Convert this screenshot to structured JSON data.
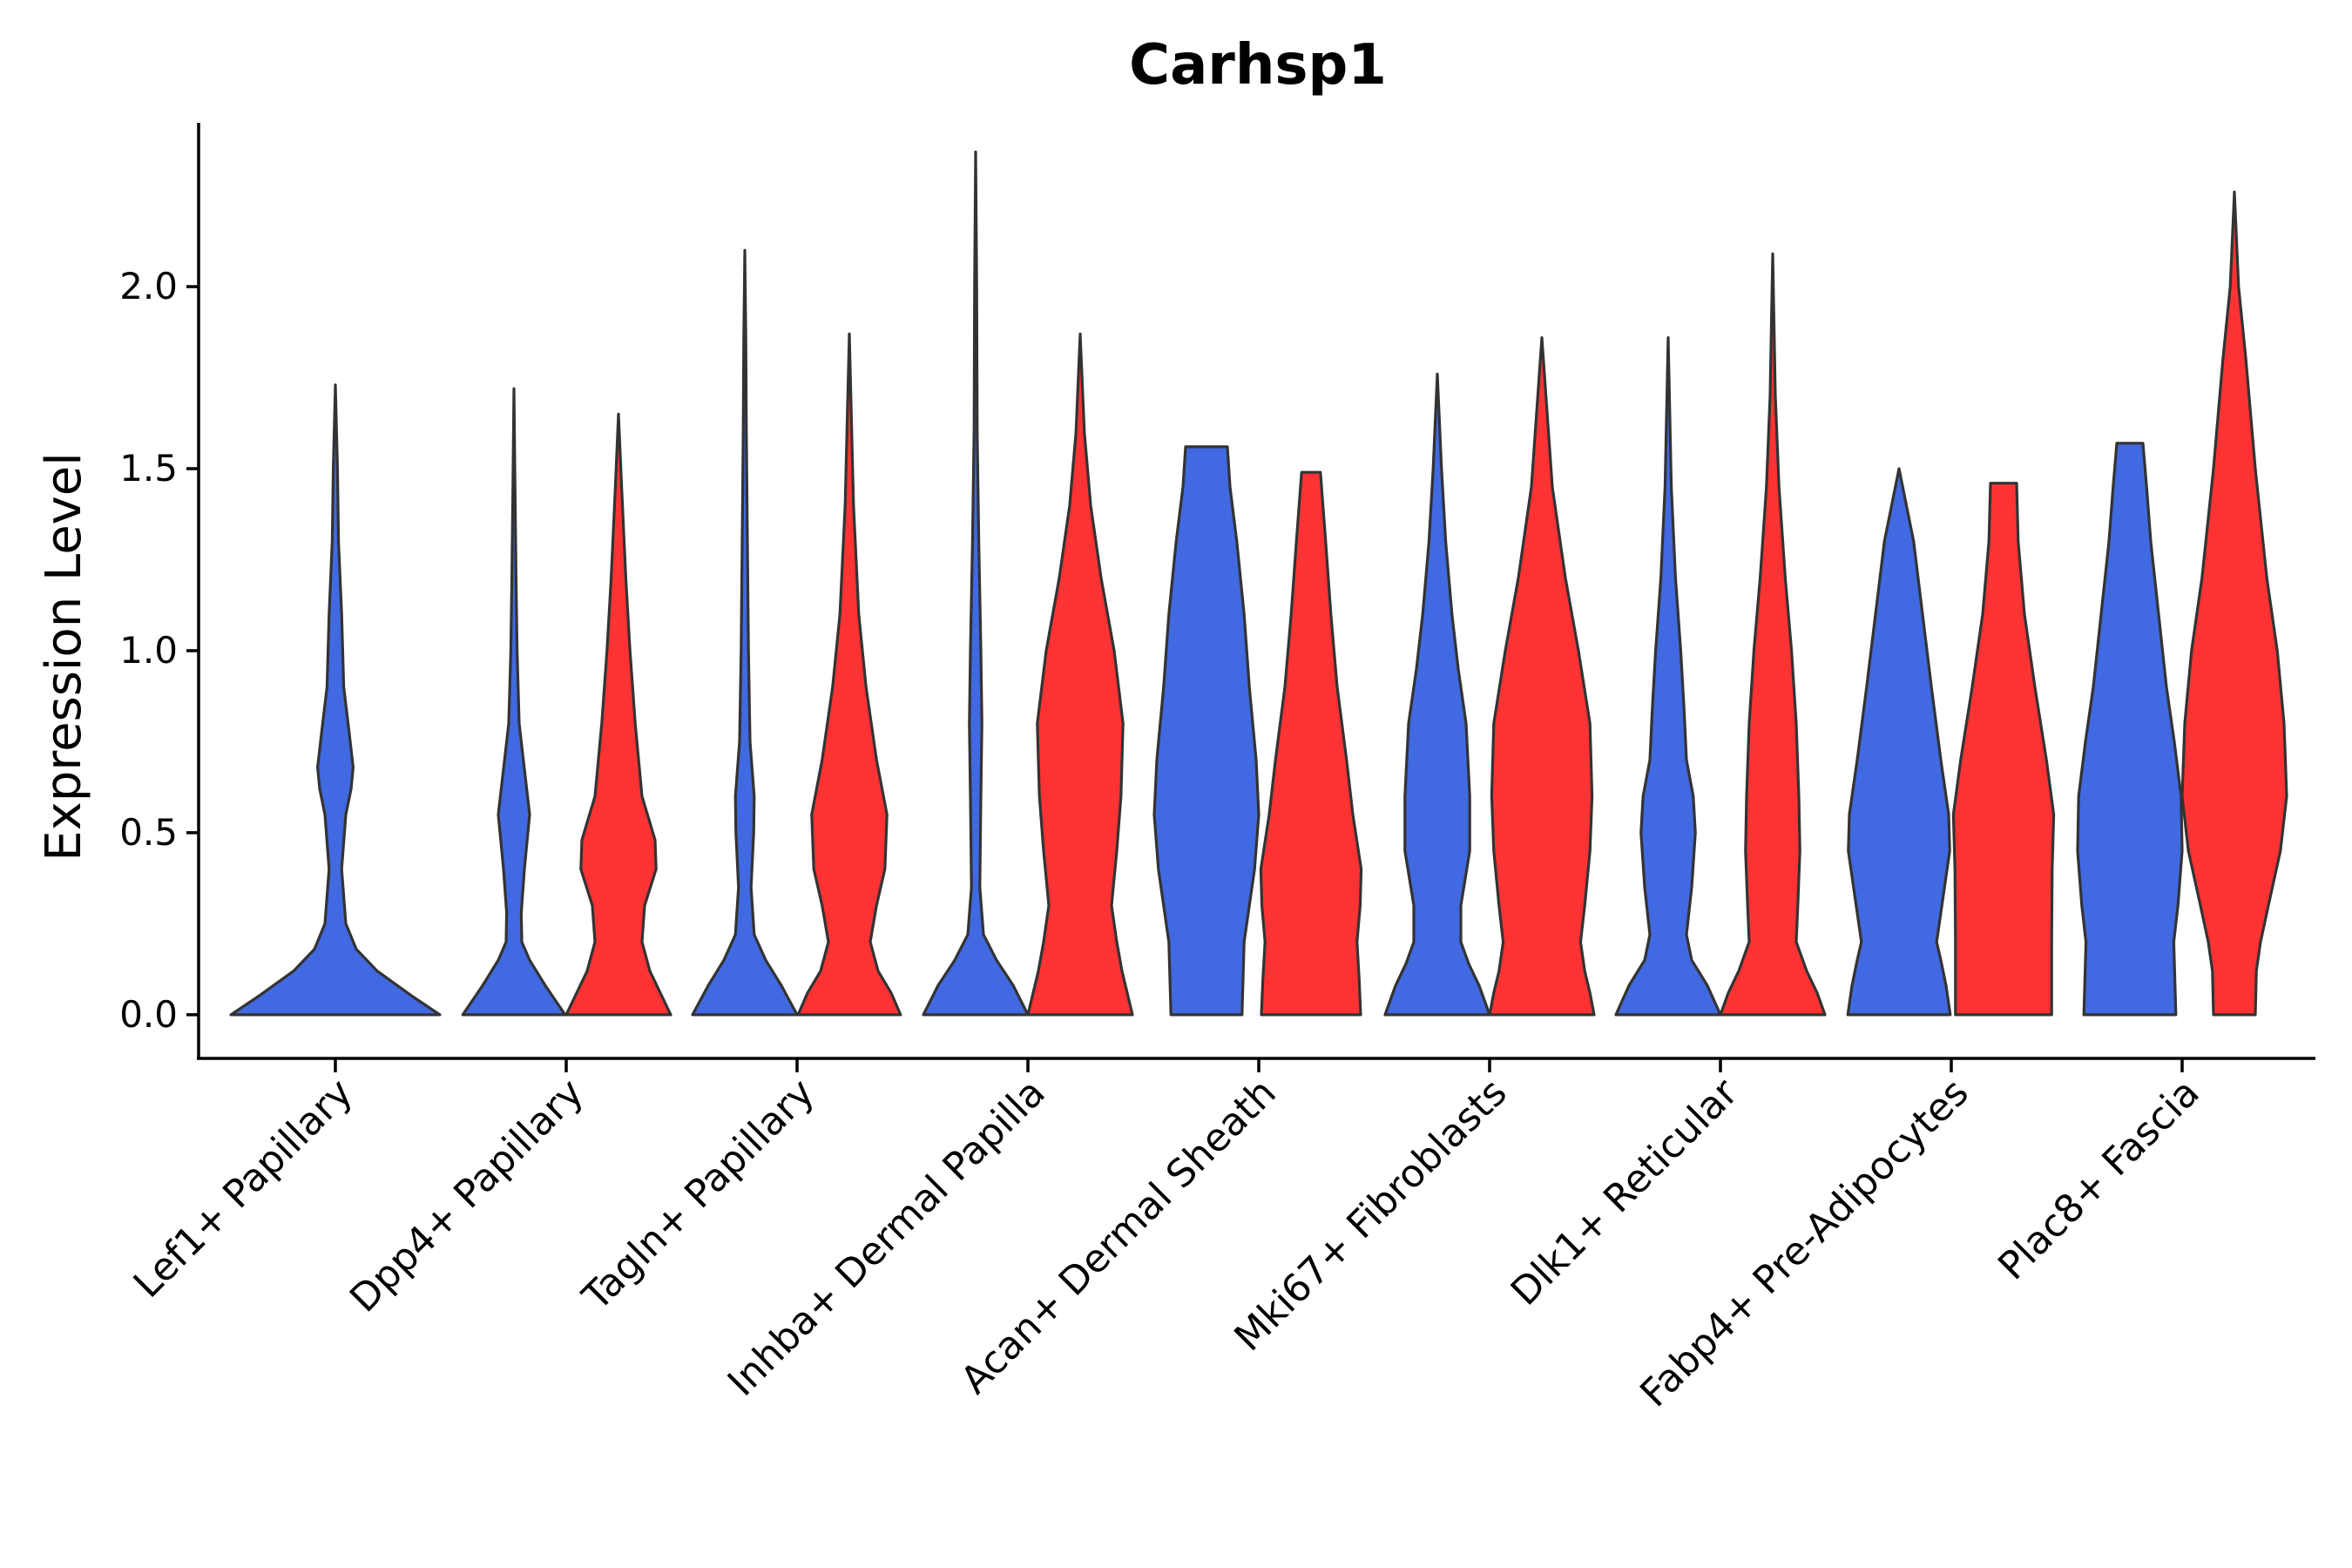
{
  "chart_data": {
    "type": "violin",
    "title": "Carhsp1",
    "xlabel": "",
    "ylabel": "Expression Level",
    "ylim": [
      -0.12,
      2.45
    ],
    "yticks": [
      0.0,
      0.5,
      1.0,
      1.5,
      2.0
    ],
    "ytick_labels": [
      "0.0",
      "0.5",
      "1.0",
      "1.5",
      "2.0"
    ],
    "categories": [
      "Lef1+ Papillary",
      "Dpp4+ Papillary",
      "Tagln+ Papillary",
      "Inhba+ Dermal Papilla",
      "Acan+ Dermal Sheath",
      "Mki67+ Fibroblasts",
      "Dlk1+ Reticular",
      "Fabp4+ Pre-Adipocytes",
      "Plac8+ Fascia"
    ],
    "colors": {
      "group_a": "#4169E1",
      "group_b": "#FF3333",
      "outline": "#333333"
    },
    "series": [
      {
        "name": "group_a",
        "color": "#4169E1",
        "violins": [
          {
            "max": 1.73,
            "profile": [
              [
                0,
                1.0
              ],
              [
                0.05,
                0.74
              ],
              [
                0.12,
                0.4
              ],
              [
                0.18,
                0.2
              ],
              [
                0.25,
                0.1
              ],
              [
                0.4,
                0.06
              ],
              [
                0.55,
                0.1
              ],
              [
                0.62,
                0.15
              ],
              [
                0.68,
                0.17
              ],
              [
                0.78,
                0.13
              ],
              [
                0.9,
                0.08
              ],
              [
                1.1,
                0.06
              ],
              [
                1.3,
                0.03
              ],
              [
                1.5,
                0.02
              ],
              [
                1.73,
                0
              ]
            ]
          },
          {
            "max": 1.72,
            "profile": [
              [
                0,
                0.98
              ],
              [
                0.08,
                0.6
              ],
              [
                0.15,
                0.3
              ],
              [
                0.2,
                0.15
              ],
              [
                0.28,
                0.14
              ],
              [
                0.4,
                0.2
              ],
              [
                0.55,
                0.3
              ],
              [
                0.65,
                0.22
              ],
              [
                0.8,
                0.1
              ],
              [
                1.0,
                0.06
              ],
              [
                1.2,
                0.04
              ],
              [
                1.45,
                0.02
              ],
              [
                1.72,
                0
              ]
            ]
          },
          {
            "max": 2.1,
            "profile": [
              [
                0,
                1.0
              ],
              [
                0.08,
                0.7
              ],
              [
                0.15,
                0.4
              ],
              [
                0.22,
                0.18
              ],
              [
                0.35,
                0.12
              ],
              [
                0.5,
                0.17
              ],
              [
                0.6,
                0.18
              ],
              [
                0.75,
                0.1
              ],
              [
                1.0,
                0.07
              ],
              [
                1.3,
                0.05
              ],
              [
                1.6,
                0.03
              ],
              [
                1.85,
                0.02
              ],
              [
                2.1,
                0
              ]
            ]
          },
          {
            "max": 2.37,
            "profile": [
              [
                0,
                1.0
              ],
              [
                0.08,
                0.72
              ],
              [
                0.15,
                0.4
              ],
              [
                0.22,
                0.15
              ],
              [
                0.35,
                0.08
              ],
              [
                0.6,
                0.1
              ],
              [
                0.8,
                0.12
              ],
              [
                1.0,
                0.1
              ],
              [
                1.3,
                0.06
              ],
              [
                1.6,
                0.03
              ],
              [
                2.0,
                0.02
              ],
              [
                2.37,
                0
              ]
            ]
          },
          {
            "max": 1.56,
            "profile": [
              [
                0,
                0.68
              ],
              [
                0.1,
                0.7
              ],
              [
                0.2,
                0.72
              ],
              [
                0.3,
                0.82
              ],
              [
                0.4,
                0.92
              ],
              [
                0.55,
                1.0
              ],
              [
                0.7,
                0.95
              ],
              [
                0.9,
                0.82
              ],
              [
                1.1,
                0.72
              ],
              [
                1.3,
                0.58
              ],
              [
                1.45,
                0.45
              ],
              [
                1.56,
                0.4
              ]
            ]
          },
          {
            "max": 1.76,
            "profile": [
              [
                0,
                1.0
              ],
              [
                0.08,
                0.8
              ],
              [
                0.14,
                0.6
              ],
              [
                0.2,
                0.45
              ],
              [
                0.3,
                0.45
              ],
              [
                0.45,
                0.62
              ],
              [
                0.6,
                0.62
              ],
              [
                0.8,
                0.55
              ],
              [
                0.95,
                0.4
              ],
              [
                1.1,
                0.28
              ],
              [
                1.3,
                0.16
              ],
              [
                1.5,
                0.08
              ],
              [
                1.76,
                0
              ]
            ]
          },
          {
            "max": 1.86,
            "profile": [
              [
                0,
                1.0
              ],
              [
                0.08,
                0.75
              ],
              [
                0.15,
                0.45
              ],
              [
                0.22,
                0.35
              ],
              [
                0.35,
                0.45
              ],
              [
                0.5,
                0.52
              ],
              [
                0.6,
                0.48
              ],
              [
                0.7,
                0.35
              ],
              [
                0.85,
                0.3
              ],
              [
                1.0,
                0.24
              ],
              [
                1.2,
                0.14
              ],
              [
                1.45,
                0.06
              ],
              [
                1.86,
                0
              ]
            ]
          },
          {
            "max": 1.5,
            "profile": [
              [
                0,
                0.98
              ],
              [
                0.08,
                0.9
              ],
              [
                0.15,
                0.8
              ],
              [
                0.2,
                0.72
              ],
              [
                0.3,
                0.82
              ],
              [
                0.45,
                0.97
              ],
              [
                0.55,
                0.95
              ],
              [
                0.7,
                0.8
              ],
              [
                0.9,
                0.62
              ],
              [
                1.1,
                0.45
              ],
              [
                1.3,
                0.28
              ],
              [
                1.5,
                0
              ]
            ]
          },
          {
            "max": 1.57,
            "profile": [
              [
                0,
                0.88
              ],
              [
                0.1,
                0.86
              ],
              [
                0.2,
                0.84
              ],
              [
                0.3,
                0.92
              ],
              [
                0.45,
                1.0
              ],
              [
                0.6,
                0.98
              ],
              [
                0.75,
                0.85
              ],
              [
                0.9,
                0.7
              ],
              [
                1.1,
                0.55
              ],
              [
                1.3,
                0.4
              ],
              [
                1.45,
                0.32
              ],
              [
                1.57,
                0.25
              ]
            ]
          }
        ]
      },
      {
        "name": "group_b",
        "color": "#FF3333",
        "violins": [
          null,
          {
            "max": 1.65,
            "profile": [
              [
                0,
                1.0
              ],
              [
                0.06,
                0.8
              ],
              [
                0.12,
                0.6
              ],
              [
                0.2,
                0.45
              ],
              [
                0.3,
                0.5
              ],
              [
                0.4,
                0.72
              ],
              [
                0.48,
                0.7
              ],
              [
                0.6,
                0.45
              ],
              [
                0.8,
                0.32
              ],
              [
                1.0,
                0.22
              ],
              [
                1.2,
                0.14
              ],
              [
                1.45,
                0.06
              ],
              [
                1.65,
                0
              ]
            ]
          },
          {
            "max": 1.87,
            "profile": [
              [
                0,
                0.98
              ],
              [
                0.06,
                0.8
              ],
              [
                0.12,
                0.55
              ],
              [
                0.2,
                0.4
              ],
              [
                0.3,
                0.52
              ],
              [
                0.4,
                0.68
              ],
              [
                0.55,
                0.72
              ],
              [
                0.7,
                0.52
              ],
              [
                0.9,
                0.32
              ],
              [
                1.1,
                0.18
              ],
              [
                1.4,
                0.08
              ],
              [
                1.87,
                0
              ]
            ]
          },
          {
            "max": 1.87,
            "profile": [
              [
                0,
                1.0
              ],
              [
                0.06,
                0.9
              ],
              [
                0.12,
                0.8
              ],
              [
                0.2,
                0.7
              ],
              [
                0.3,
                0.6
              ],
              [
                0.45,
                0.7
              ],
              [
                0.6,
                0.78
              ],
              [
                0.8,
                0.82
              ],
              [
                1.0,
                0.65
              ],
              [
                1.2,
                0.4
              ],
              [
                1.4,
                0.2
              ],
              [
                1.6,
                0.08
              ],
              [
                1.87,
                0
              ]
            ]
          },
          {
            "max": 1.49,
            "profile": [
              [
                0,
                0.95
              ],
              [
                0.1,
                0.92
              ],
              [
                0.2,
                0.88
              ],
              [
                0.3,
                0.94
              ],
              [
                0.4,
                0.96
              ],
              [
                0.55,
                0.8
              ],
              [
                0.7,
                0.68
              ],
              [
                0.9,
                0.5
              ],
              [
                1.1,
                0.38
              ],
              [
                1.3,
                0.28
              ],
              [
                1.49,
                0.18
              ]
            ]
          },
          {
            "max": 1.86,
            "profile": [
              [
                0,
                1.0
              ],
              [
                0.06,
                0.92
              ],
              [
                0.12,
                0.82
              ],
              [
                0.2,
                0.74
              ],
              [
                0.3,
                0.82
              ],
              [
                0.45,
                0.92
              ],
              [
                0.6,
                0.96
              ],
              [
                0.8,
                0.92
              ],
              [
                1.0,
                0.7
              ],
              [
                1.2,
                0.45
              ],
              [
                1.45,
                0.2
              ],
              [
                1.86,
                0
              ]
            ]
          },
          {
            "max": 2.09,
            "profile": [
              [
                0,
                1.0
              ],
              [
                0.06,
                0.85
              ],
              [
                0.12,
                0.65
              ],
              [
                0.2,
                0.45
              ],
              [
                0.3,
                0.48
              ],
              [
                0.45,
                0.52
              ],
              [
                0.6,
                0.5
              ],
              [
                0.8,
                0.45
              ],
              [
                1.0,
                0.36
              ],
              [
                1.2,
                0.24
              ],
              [
                1.45,
                0.12
              ],
              [
                1.7,
                0.05
              ],
              [
                2.09,
                0
              ]
            ]
          },
          {
            "max": 1.46,
            "profile": [
              [
                0,
                0.92
              ],
              [
                0.2,
                0.92
              ],
              [
                0.4,
                0.93
              ],
              [
                0.55,
                0.96
              ],
              [
                0.7,
                0.82
              ],
              [
                0.9,
                0.6
              ],
              [
                1.1,
                0.4
              ],
              [
                1.3,
                0.28
              ],
              [
                1.46,
                0.25
              ]
            ]
          },
          {
            "max": 2.26,
            "profile": [
              [
                0,
                0.4
              ],
              [
                0.12,
                0.42
              ],
              [
                0.2,
                0.5
              ],
              [
                0.3,
                0.65
              ],
              [
                0.45,
                0.88
              ],
              [
                0.6,
                1.0
              ],
              [
                0.8,
                0.95
              ],
              [
                1.0,
                0.82
              ],
              [
                1.2,
                0.62
              ],
              [
                1.5,
                0.4
              ],
              [
                1.8,
                0.22
              ],
              [
                2.0,
                0.08
              ],
              [
                2.26,
                0
              ]
            ]
          }
        ]
      }
    ]
  }
}
